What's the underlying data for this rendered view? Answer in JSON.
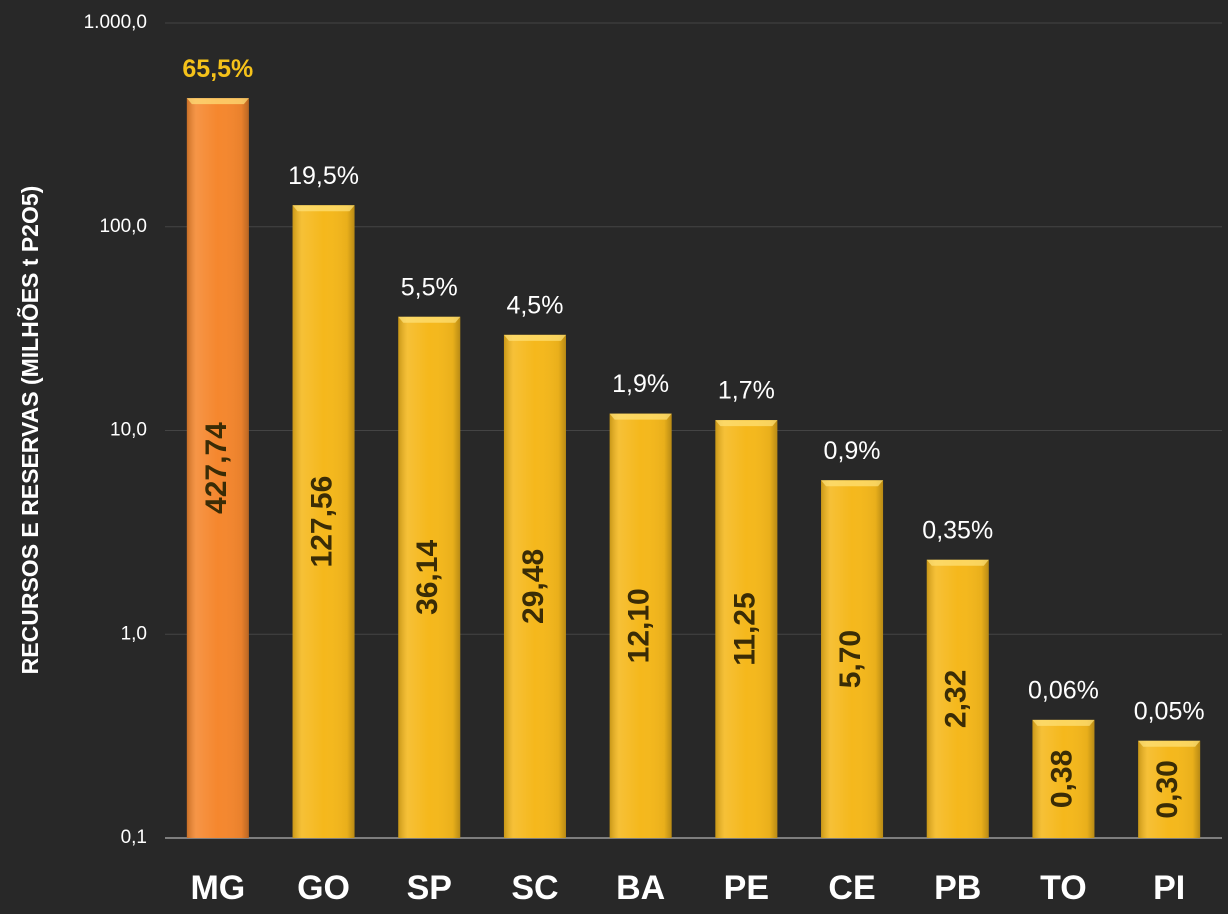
{
  "chart_data": {
    "type": "bar",
    "y_axis_label": "RECURSOS E RESERVAS (MILHÕES t P2O5)",
    "categories": [
      "MG",
      "GO",
      "SP",
      "SC",
      "BA",
      "PE",
      "CE",
      "PB",
      "TO",
      "PI"
    ],
    "values": [
      427.74,
      127.56,
      36.14,
      29.48,
      12.1,
      11.25,
      5.7,
      2.32,
      0.38,
      0.3
    ],
    "value_labels": [
      "427,74",
      "127,56",
      "36,14",
      "29,48",
      "12,10",
      "11,25",
      "5,70",
      "2,32",
      "0,38",
      "0,30"
    ],
    "shares": [
      65.5,
      19.5,
      5.5,
      4.5,
      1.9,
      1.7,
      0.9,
      0.35,
      0.06,
      0.05
    ],
    "share_labels": [
      "65,5%",
      "19,5%",
      "5,5%",
      "4,5%",
      "1,9%",
      "1,7%",
      "0,9%",
      "0,35%",
      "0,06%",
      "0,05%"
    ],
    "colors": [
      "#f5872e",
      "#f5b81c",
      "#f5b81c",
      "#f5b81c",
      "#f5b81c",
      "#f5b81c",
      "#f5b81c",
      "#f5b81c",
      "#f5b81c",
      "#f5b81c"
    ],
    "highlight_label_color": "#f5c21a",
    "log_scale": true,
    "ylim": [
      0.1,
      1000
    ],
    "yticks": [
      {
        "value": 0.1,
        "label": "0,1"
      },
      {
        "value": 1,
        "label": "1,0"
      },
      {
        "value": 10,
        "label": "10,0"
      },
      {
        "value": 100,
        "label": "100,0"
      },
      {
        "value": 1000,
        "label": "1.000,0"
      }
    ],
    "grid": true
  }
}
